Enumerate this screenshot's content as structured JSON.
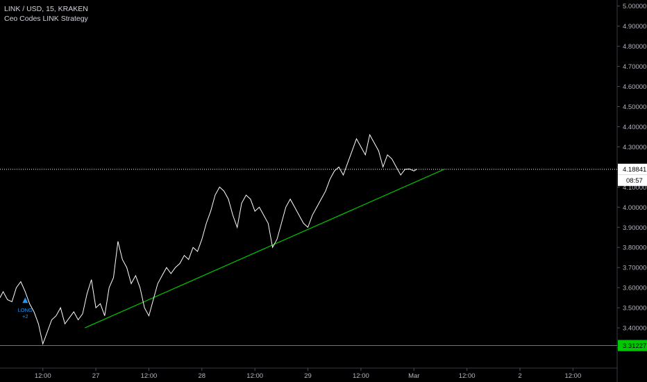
{
  "header": {
    "symbol_line": "LINK / USD, 15, KRAKEN",
    "strategy_name": "Ceo Codes LINK Strategy"
  },
  "price_label": {
    "value": "4.18841",
    "countdown": "08:57",
    "color": "#ffffff"
  },
  "trail_stop_label": {
    "value": "3.31227",
    "color": "#00c800"
  },
  "signal": {
    "label": "LONG",
    "qty": "+2",
    "color": "#2196f3"
  },
  "trendline_color": "#00c800",
  "chart_data": {
    "type": "line",
    "title": "",
    "xlabel": "",
    "ylabel": "",
    "ylim": [
      3.2,
      5.03
    ],
    "y_ticks": [
      "5.00000",
      "4.90000",
      "4.80000",
      "4.70000",
      "4.60000",
      "4.50000",
      "4.40000",
      "4.30000",
      "4.20000",
      "4.10000",
      "4.00000",
      "3.90000",
      "3.80000",
      "3.70000",
      "3.60000",
      "3.50000",
      "3.40000",
      "3.30000"
    ],
    "x_ticks": [
      "12:00",
      "27",
      "12:00",
      "28",
      "12:00",
      "29",
      "12:00",
      "Mar",
      "12:00",
      "2",
      "12:00"
    ],
    "x_tick_hours": [
      12,
      24,
      36,
      48,
      60,
      72,
      84,
      96,
      108,
      120,
      132
    ],
    "x_range_hours": [
      2.3,
      142
    ],
    "grid": false,
    "series": [
      {
        "type": "line",
        "color": "#ffffff",
        "x_hours": [
          2.3,
          3,
          4,
          5,
          6,
          7,
          8,
          9,
          10,
          11,
          12,
          13,
          14,
          15,
          16,
          17,
          18,
          19,
          20,
          21,
          22,
          23,
          24,
          25,
          26,
          27,
          28,
          29,
          30,
          31,
          32,
          33,
          34,
          35,
          36,
          37,
          38,
          39,
          40,
          41,
          42,
          43,
          44,
          45,
          46,
          47,
          48,
          49,
          50,
          51,
          52,
          53,
          54,
          55,
          56,
          57,
          58,
          59,
          60,
          61,
          62,
          63,
          64,
          65,
          66,
          67,
          68,
          69,
          70,
          71,
          72,
          73,
          74,
          75,
          76,
          77,
          78,
          79,
          80,
          81,
          82,
          83,
          84,
          85,
          86,
          87,
          88,
          89,
          90,
          91,
          92,
          93,
          94,
          95,
          96,
          96.6
        ],
        "values": [
          3.55,
          3.58,
          3.54,
          3.53,
          3.6,
          3.63,
          3.58,
          3.52,
          3.48,
          3.42,
          3.32,
          3.38,
          3.44,
          3.46,
          3.5,
          3.42,
          3.45,
          3.48,
          3.44,
          3.47,
          3.57,
          3.64,
          3.5,
          3.52,
          3.46,
          3.6,
          3.65,
          3.83,
          3.74,
          3.7,
          3.62,
          3.66,
          3.6,
          3.5,
          3.46,
          3.54,
          3.62,
          3.66,
          3.7,
          3.67,
          3.7,
          3.72,
          3.76,
          3.74,
          3.8,
          3.78,
          3.84,
          3.92,
          3.98,
          4.06,
          4.1,
          4.08,
          4.04,
          3.96,
          3.9,
          4.02,
          4.06,
          4.04,
          3.98,
          4.0,
          3.96,
          3.92,
          3.8,
          3.84,
          3.92,
          4.0,
          4.04,
          4.0,
          3.96,
          3.92,
          3.9,
          3.96,
          4.0,
          4.04,
          4.08,
          4.14,
          4.18,
          4.2,
          4.16,
          4.22,
          4.28,
          4.34,
          4.3,
          4.26,
          4.36,
          4.32,
          4.28,
          4.2,
          4.26,
          4.24,
          4.2,
          4.16,
          4.18841,
          4.19,
          4.18,
          4.18841
        ]
      }
    ],
    "horizontal_lines": [
      {
        "value": 4.18841,
        "color": "#ffffff",
        "style": "dotted"
      },
      {
        "value": 3.31227,
        "color": "#00c800",
        "style": "solid"
      }
    ],
    "trendline": {
      "x_hours": [
        21.5,
        103
      ],
      "values": [
        3.4,
        4.19
      ]
    },
    "signal_point": {
      "x_hours": 8,
      "value": 3.51
    }
  }
}
